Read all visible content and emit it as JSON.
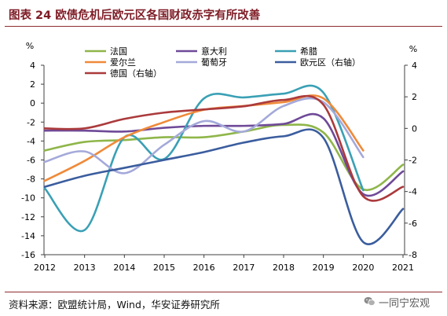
{
  "source": "资料来源：欧盟统计局，Wind，华安证券研究所",
  "watermark": {
    "text": "一同宁宏观",
    "icon": "wechat-icon"
  },
  "chart_data": {
    "type": "line",
    "title": "图表 24 欧债危机后欧元区各国财政赤字有所改善",
    "ylabel": "%",
    "y2label": "%",
    "smooth": true,
    "grid": false,
    "legend": "top",
    "categories": [
      "2012",
      "2013",
      "2014",
      "2015",
      "2016",
      "2017",
      "2018",
      "2019",
      "2020",
      "2021"
    ],
    "ylim": [
      -16,
      4
    ],
    "yticks": [
      4,
      2,
      0,
      -2,
      -4,
      -6,
      -8,
      -10,
      -12,
      -14,
      -16
    ],
    "y2lim": [
      -8,
      4
    ],
    "y2ticks": [
      4,
      2,
      0,
      -2,
      -4,
      -6,
      -8
    ],
    "series": [
      {
        "name": "法国",
        "axis": "left",
        "color": "#8fb64a",
        "values": [
          -5.0,
          -4.1,
          -3.9,
          -3.6,
          -3.6,
          -3.0,
          -2.3,
          -3.1,
          -9.1,
          -6.5
        ]
      },
      {
        "name": "意大利",
        "axis": "left",
        "color": "#6f4a98",
        "values": [
          -2.9,
          -2.9,
          -3.0,
          -2.6,
          -2.4,
          -2.4,
          -2.2,
          -1.6,
          -9.6,
          -7.2
        ]
      },
      {
        "name": "希腊",
        "axis": "left",
        "color": "#3aa0b5",
        "values": [
          -9.0,
          -13.4,
          -3.6,
          -5.9,
          0.5,
          0.6,
          1.0,
          1.1,
          -9.2,
          null
        ]
      },
      {
        "name": "爱尔兰",
        "axis": "left",
        "color": "#ef8a3a",
        "values": [
          -8.2,
          -6.1,
          -3.6,
          -2.0,
          -0.7,
          -0.3,
          0.1,
          0.5,
          -5.0,
          null
        ]
      },
      {
        "name": "葡萄牙",
        "axis": "left",
        "color": "#a4a9da",
        "values": [
          -6.2,
          -5.1,
          -7.4,
          -4.4,
          -1.9,
          -3.0,
          -0.3,
          0.1,
          -5.7,
          null
        ]
      },
      {
        "name": "欧元区（右轴）",
        "axis": "right",
        "color": "#3b5d9e",
        "values": [
          -3.7,
          -3.0,
          -2.5,
          -2.0,
          -1.5,
          -0.9,
          -0.5,
          -0.6,
          -7.2,
          -5.1
        ]
      },
      {
        "name": "德国（右轴）",
        "axis": "right",
        "color": "#ab3a3c",
        "values": [
          0.0,
          0.0,
          0.6,
          1.0,
          1.2,
          1.4,
          1.8,
          1.5,
          -4.3,
          -3.7
        ]
      }
    ]
  }
}
